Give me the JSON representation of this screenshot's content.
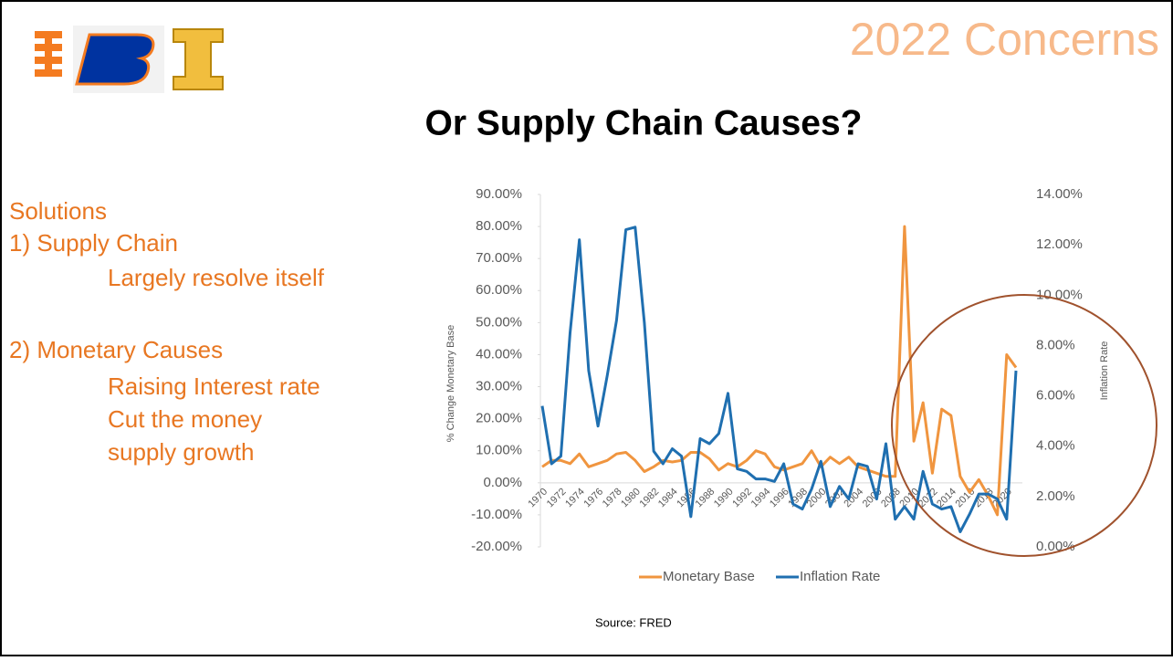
{
  "slide": {
    "heading": "2022 Concerns",
    "title": "Or Supply Chain Causes?",
    "bullets": [
      "Solutions",
      "1) Supply Chain",
      "Largely resolve itself",
      "2) Monetary Causes",
      "Raising Interest rate",
      "Cut the money",
      "supply growth"
    ],
    "source": "Source: FRED"
  },
  "chart_data": {
    "type": "line",
    "categories": [
      "1970",
      null,
      "1972",
      null,
      "1974",
      null,
      "1976",
      null,
      "1978",
      null,
      "1980",
      null,
      "1982",
      null,
      "1984",
      null,
      "1986",
      null,
      "1988",
      null,
      "1990",
      null,
      "1992",
      null,
      "1994",
      null,
      "1996",
      null,
      "1998",
      null,
      "2000",
      null,
      "2002",
      null,
      "2004",
      null,
      "2006",
      null,
      "2008",
      null,
      "2010",
      null,
      "2012",
      null,
      "2014",
      null,
      "2016",
      null,
      "2018",
      null,
      "2020",
      null
    ],
    "series": [
      {
        "name": "Monetary Base",
        "color": "#f0953f",
        "values": [
          5,
          7,
          7,
          6,
          9,
          5,
          6,
          7,
          9,
          9.5,
          7,
          3.5,
          5,
          7,
          6.5,
          7,
          9.5,
          9.5,
          7.5,
          4,
          6,
          5,
          7,
          10,
          9,
          5,
          4,
          5,
          6,
          10,
          5,
          8,
          6,
          8,
          5,
          4,
          3,
          2,
          2,
          80,
          13,
          25,
          3,
          23,
          21,
          2,
          -3,
          1,
          -4,
          -10,
          40,
          36
        ]
      },
      {
        "name": "Inflation Rate",
        "color": "#1f6fb0",
        "axis": "y2",
        "values": [
          5.6,
          3.3,
          3.6,
          8.5,
          12.2,
          7.0,
          4.8,
          6.8,
          9.0,
          12.6,
          12.7,
          8.9,
          3.8,
          3.3,
          3.9,
          3.6,
          1.2,
          4.3,
          4.1,
          4.5,
          6.1,
          3.1,
          3.0,
          2.7,
          2.7,
          2.6,
          3.3,
          1.7,
          1.5,
          2.3,
          3.4,
          1.6,
          2.4,
          1.9,
          3.3,
          3.2,
          1.9,
          4.1,
          1.1,
          1.6,
          1.1,
          3.0,
          1.7,
          1.5,
          1.6,
          0.6,
          1.3,
          2.1,
          2.1,
          1.9,
          1.1,
          7.0
        ]
      }
    ],
    "ylabel": "% Change Monetary Base",
    "y2label": "Inflation Rate",
    "ylim": [
      -20,
      90
    ],
    "yticks": [
      {
        "value": -20,
        "label": "-20.00%"
      },
      {
        "value": -10,
        "label": "-10.00%"
      },
      {
        "value": 0,
        "label": "0.00%"
      },
      {
        "value": 10,
        "label": "10.00%"
      },
      {
        "value": 20,
        "label": "20.00%"
      },
      {
        "value": 30,
        "label": "30.00%"
      },
      {
        "value": 40,
        "label": "40.00%"
      },
      {
        "value": 50,
        "label": "50.00%"
      },
      {
        "value": 60,
        "label": "60.00%"
      },
      {
        "value": 70,
        "label": "70.00%"
      },
      {
        "value": 80,
        "label": "80.00%"
      },
      {
        "value": 90,
        "label": "90.00%"
      }
    ],
    "y2lim": [
      0,
      14
    ],
    "y2ticks": [
      {
        "value": 0,
        "label": "0.00%"
      },
      {
        "value": 2,
        "label": "2.00%"
      },
      {
        "value": 4,
        "label": "4.00%"
      },
      {
        "value": 6,
        "label": "6.00%"
      },
      {
        "value": 8,
        "label": "8.00%"
      },
      {
        "value": 10,
        "label": "10.00%"
      },
      {
        "value": 12,
        "label": "12.00%"
      },
      {
        "value": 14,
        "label": "14.00%"
      }
    ],
    "legend": "bottom"
  }
}
